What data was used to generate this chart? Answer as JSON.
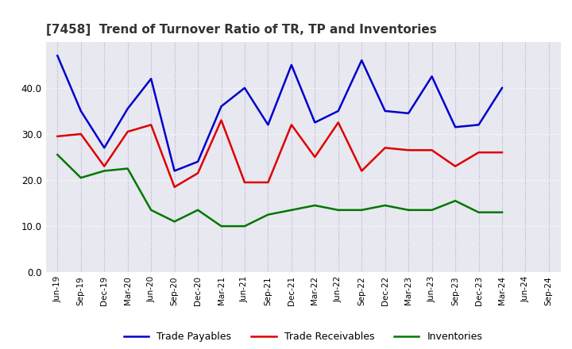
{
  "title": "[7458]  Trend of Turnover Ratio of TR, TP and Inventories",
  "x_labels": [
    "Jun-19",
    "Sep-19",
    "Dec-19",
    "Mar-20",
    "Jun-20",
    "Sep-20",
    "Dec-20",
    "Mar-21",
    "Jun-21",
    "Sep-21",
    "Dec-21",
    "Mar-22",
    "Jun-22",
    "Sep-22",
    "Dec-22",
    "Mar-23",
    "Jun-23",
    "Sep-23",
    "Dec-23",
    "Mar-24",
    "Jun-24",
    "Sep-24"
  ],
  "trade_receivables": [
    29.5,
    30.0,
    23.0,
    30.5,
    32.0,
    18.5,
    21.5,
    33.0,
    19.5,
    19.5,
    32.0,
    25.0,
    32.5,
    22.0,
    27.0,
    26.5,
    26.5,
    23.0,
    26.0,
    26.0,
    null,
    null
  ],
  "trade_payables": [
    47.0,
    35.0,
    27.0,
    35.5,
    42.0,
    22.0,
    24.0,
    36.0,
    40.0,
    32.0,
    45.0,
    32.5,
    35.0,
    46.0,
    35.0,
    34.5,
    42.5,
    31.5,
    32.0,
    40.0,
    null,
    null
  ],
  "inventories": [
    25.5,
    20.5,
    22.0,
    22.5,
    13.5,
    11.0,
    13.5,
    10.0,
    10.0,
    12.5,
    13.5,
    14.5,
    13.5,
    13.5,
    14.5,
    13.5,
    13.5,
    15.5,
    13.0,
    13.0,
    null,
    null
  ],
  "ylim": [
    0,
    50
  ],
  "yticks": [
    0.0,
    10.0,
    20.0,
    30.0,
    40.0
  ],
  "color_tr": "#dd0000",
  "color_tp": "#0000cc",
  "color_inv": "#007700",
  "plot_bg_color": "#e8e8f0",
  "fig_bg_color": "#ffffff",
  "grid_color": "#ffffff",
  "vgrid_color": "#aaaacc",
  "legend_labels": [
    "Trade Receivables",
    "Trade Payables",
    "Inventories"
  ]
}
